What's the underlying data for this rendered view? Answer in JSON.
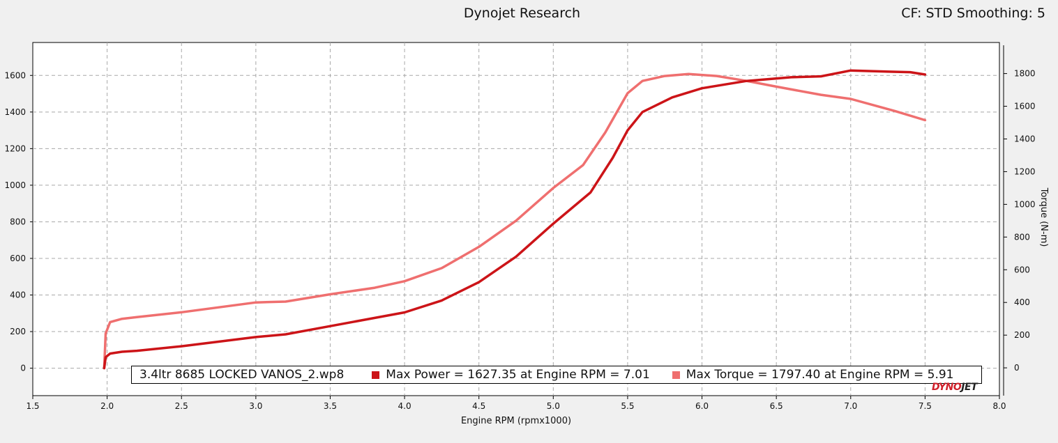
{
  "header": {
    "title": "Dynojet Research",
    "cf_info": "CF: STD Smoothing: 5"
  },
  "legend": {
    "file": "3.4ltr 8685 LOCKED VANOS_2.wp8",
    "power_text": "Max Power = 1627.35 at Engine RPM = 7.01",
    "torque_text": "Max Torque = 1797.40 at Engine RPM = 5.91"
  },
  "logo": {
    "dyno": "DYNO",
    "jet": "JET"
  },
  "colors": {
    "power": "#cc1418",
    "torque": "#ef6f6f",
    "grid": "#a8a8a8",
    "background": "#f0f0f0"
  },
  "chart_data": {
    "type": "line",
    "xlabel": "Engine RPM (rpmx1000)",
    "ylabel": "",
    "y2label": "Torque (N-m)",
    "xlim": [
      1.5,
      8.0
    ],
    "ylim": [
      -150,
      1780
    ],
    "y2lim": [
      -170,
      1990
    ],
    "xticks": [
      "1.5",
      "2.0",
      "2.5",
      "3.0",
      "3.5",
      "4.0",
      "4.5",
      "5.0",
      "5.5",
      "6.0",
      "6.5",
      "7.0",
      "7.5",
      "8.0"
    ],
    "yticks": [
      "0",
      "200",
      "400",
      "600",
      "800",
      "1000",
      "1200",
      "1400",
      "1600"
    ],
    "y2ticks": [
      "0",
      "200",
      "400",
      "600",
      "800",
      "1000",
      "1200",
      "1400",
      "1600",
      "1800"
    ],
    "grid": true,
    "series": [
      {
        "name": "Max Power",
        "axis": "left",
        "x": [
          1.98,
          1.99,
          2.02,
          2.1,
          2.2,
          2.5,
          3.0,
          3.2,
          3.5,
          3.8,
          4.0,
          4.25,
          4.5,
          4.75,
          5.0,
          5.25,
          5.4,
          5.5,
          5.6,
          5.8,
          6.0,
          6.3,
          6.6,
          6.8,
          7.0,
          7.2,
          7.4,
          7.5
        ],
        "values": [
          0,
          60,
          80,
          90,
          95,
          120,
          170,
          185,
          230,
          275,
          305,
          370,
          470,
          610,
          790,
          960,
          1150,
          1300,
          1400,
          1480,
          1530,
          1570,
          1590,
          1595,
          1627,
          1622,
          1618,
          1605
        ]
      },
      {
        "name": "Max Torque",
        "axis": "right",
        "x": [
          1.98,
          1.99,
          2.02,
          2.1,
          2.2,
          2.5,
          3.0,
          3.2,
          3.5,
          3.8,
          4.0,
          4.25,
          4.5,
          4.75,
          5.0,
          5.2,
          5.35,
          5.5,
          5.6,
          5.75,
          5.91,
          6.1,
          6.3,
          6.5,
          6.8,
          7.0,
          7.3,
          7.5
        ],
        "values": [
          0,
          210,
          280,
          300,
          310,
          340,
          400,
          405,
          450,
          490,
          530,
          610,
          740,
          900,
          1100,
          1240,
          1440,
          1680,
          1755,
          1785,
          1797,
          1785,
          1755,
          1720,
          1670,
          1645,
          1570,
          1515
        ]
      }
    ]
  }
}
